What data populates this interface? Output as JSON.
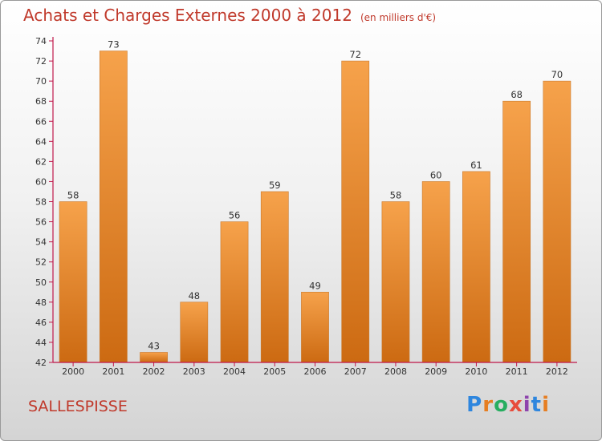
{
  "title": "Achats et Charges Externes 2000 à 2012",
  "subtitle": "(en milliers d'€)",
  "commune": "SALLESPISSE",
  "logo": {
    "letters": [
      "P",
      "r",
      "o",
      "x",
      "i",
      "t",
      "i"
    ],
    "colors": [
      "#2e86de",
      "#e67e22",
      "#27ae60",
      "#e74c3c",
      "#8e44ad",
      "#2e86de",
      "#e67e22"
    ]
  },
  "colors": {
    "title": "#c0392b",
    "bar_light": "#f6a24b",
    "bar_dark": "#cc6a12",
    "axis": "#c0174a"
  },
  "chart_data": {
    "type": "bar",
    "title": "Achats et Charges Externes 2000 à 2012",
    "subtitle": "(en milliers d'€)",
    "categories": [
      "2000",
      "2001",
      "2002",
      "2003",
      "2004",
      "2005",
      "2006",
      "2007",
      "2008",
      "2009",
      "2010",
      "2011",
      "2012"
    ],
    "values": [
      58,
      73,
      43,
      48,
      56,
      59,
      49,
      72,
      58,
      60,
      61,
      68,
      70
    ],
    "ylim": [
      42,
      74
    ],
    "yticks": [
      42,
      44,
      46,
      48,
      50,
      52,
      54,
      56,
      58,
      60,
      62,
      64,
      66,
      68,
      70,
      72,
      74
    ],
    "grid": false,
    "legend": "none"
  }
}
